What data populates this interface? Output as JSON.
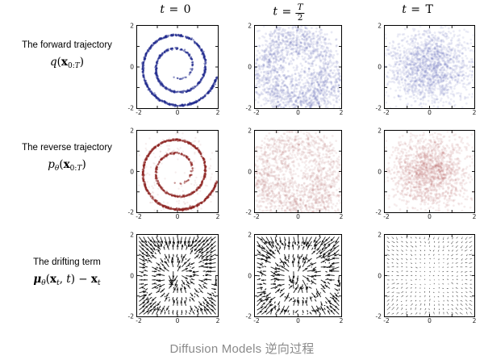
{
  "caption": "Diffusion Models 逆向过程",
  "headers": [
    {
      "var": "t",
      "eq": "=",
      "value": "0"
    },
    {
      "var": "t",
      "eq": "=",
      "num": "T",
      "den": "2"
    },
    {
      "var": "t",
      "eq": "=",
      "value": "T"
    }
  ],
  "rows": [
    {
      "label": "The forward trajectory",
      "math": {
        "fn": "q",
        "open": "(",
        "arg": "x",
        "subp": "0:",
        "subi": "T",
        "close": ")"
      }
    },
    {
      "label": "The reverse trajectory",
      "math": {
        "fn": "p",
        "fnsub": "θ",
        "open": "(",
        "arg": "x",
        "subp": "0:",
        "subi": "T",
        "close": ")"
      }
    },
    {
      "label": "The drifting term",
      "math": {
        "mu": "μ",
        "musub": "θ",
        "open": "(",
        "x1": "x",
        "x1sub": "t",
        "comma": ", ",
        "t": "t",
        "close": ")",
        "minus": " − ",
        "x2": "x",
        "x2sub": "t"
      }
    }
  ],
  "chart_data": {
    "type": "scatter",
    "figure": "3x3 grid: forward diffusion (blue scatter), reverse diffusion (red scatter), drift vector field (black quiver) of a 2-D swiss-roll distribution at t=0, t=T/2, t=T",
    "axis": {
      "range": [
        -2,
        2
      ],
      "xtick_labels": [
        "-2",
        "0",
        "2"
      ],
      "ytick_labels": [
        "2",
        "0",
        "-2"
      ],
      "minor_ticks": [
        -1,
        0,
        1
      ],
      "grid": false
    },
    "spiral": {
      "theta_min": 4.2,
      "theta_max": 18.6,
      "radius": "r = 0.103*theta + 0.09"
    },
    "subplots": [
      {
        "name": "forward-t0",
        "row": 0,
        "col": 0,
        "type": "spiral_scatter",
        "color": "#1f2a8e",
        "n": 950,
        "noise": 0.022,
        "alpha": 0.5,
        "dot": 1.2,
        "seed": 11
      },
      {
        "name": "forward-thalf",
        "row": 0,
        "col": 1,
        "type": "spiral_scatter",
        "color": "#4a55aa",
        "n": 1900,
        "noise": 0.42,
        "alpha": 0.13,
        "dot": 1.4,
        "seed": 22
      },
      {
        "name": "forward-tT",
        "row": 0,
        "col": 2,
        "type": "gauss_scatter",
        "color": "#5b65b2",
        "n": 1750,
        "sigma": 0.95,
        "alpha": 0.12,
        "dot": 1.4,
        "seed": 33
      },
      {
        "name": "reverse-t0",
        "row": 1,
        "col": 0,
        "type": "spiral_scatter",
        "color": "#8e2322",
        "n": 950,
        "noise": 0.022,
        "alpha": 0.5,
        "dot": 1.2,
        "seed": 44,
        "strays": 170,
        "stray_noise": 0.32,
        "stray_alpha": 0.08
      },
      {
        "name": "reverse-thalf",
        "row": 1,
        "col": 1,
        "type": "spiral_scatter",
        "color": "#a35050",
        "n": 1750,
        "noise": 0.5,
        "alpha": 0.11,
        "dot": 1.4,
        "seed": 55
      },
      {
        "name": "reverse-tT",
        "row": 1,
        "col": 2,
        "type": "gauss_scatter",
        "color": "#a95656",
        "n": 1650,
        "sigma": 0.9,
        "alpha": 0.11,
        "dot": 1.4,
        "seed": 66
      },
      {
        "name": "drift-t0",
        "row": 2,
        "col": 0,
        "type": "quiver_spiral",
        "color": "#111111",
        "grid": 19,
        "cap": 0.34,
        "jitter": 0.02,
        "alpha": 0.9,
        "seed": 77
      },
      {
        "name": "drift-thalf",
        "row": 2,
        "col": 1,
        "type": "quiver_spiral",
        "color": "#111111",
        "grid": 19,
        "cap": 0.34,
        "jitter": 0.05,
        "alpha": 0.88,
        "seed": 88
      },
      {
        "name": "drift-tT",
        "row": 2,
        "col": 2,
        "type": "quiver_decay",
        "color": "#111111",
        "grid": 19,
        "k": 0.055,
        "jitter": 0.025,
        "alpha": 0.55,
        "seed": 99
      }
    ]
  }
}
